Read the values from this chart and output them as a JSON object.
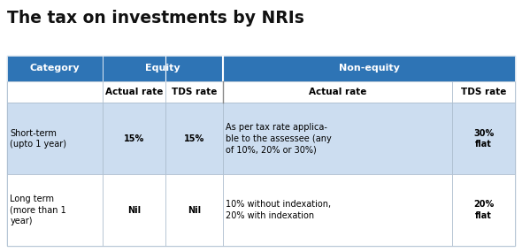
{
  "title": "The tax on investments by NRIs",
  "header_bg": "#2E74B5",
  "row1_bg": "#CCDDF0",
  "row2_bg": "#FFFFFF",
  "outer_bg": "#D9E8F5",
  "header_text_color": "#FFFFFF",
  "border_color": "#AABBCC",
  "col_ratios": [
    0.175,
    0.115,
    0.105,
    0.42,
    0.115
  ],
  "row_ratios": [
    0.135,
    0.115,
    0.375,
    0.375
  ],
  "header1": [
    "Category",
    "Equity",
    "Non-equity"
  ],
  "header2": [
    "",
    "Actual rate",
    "TDS rate",
    "Actual rate",
    "TDS rate"
  ],
  "row1_col0": "Short-term\n(upto 1 year)",
  "row1_col1": "15%",
  "row1_col2": "15%",
  "row1_col3": "As per tax rate applica-\nble to the assessee (any\nof 10%, 20% or 30%)",
  "row1_col4": "30%\nflat",
  "row2_col0": "Long term\n(more than 1\nyear)",
  "row2_col1": "Nil",
  "row2_col2": "Nil",
  "row2_col3": "10% without indexation,\n20% with indexation",
  "row2_col4": "20%\nflat"
}
